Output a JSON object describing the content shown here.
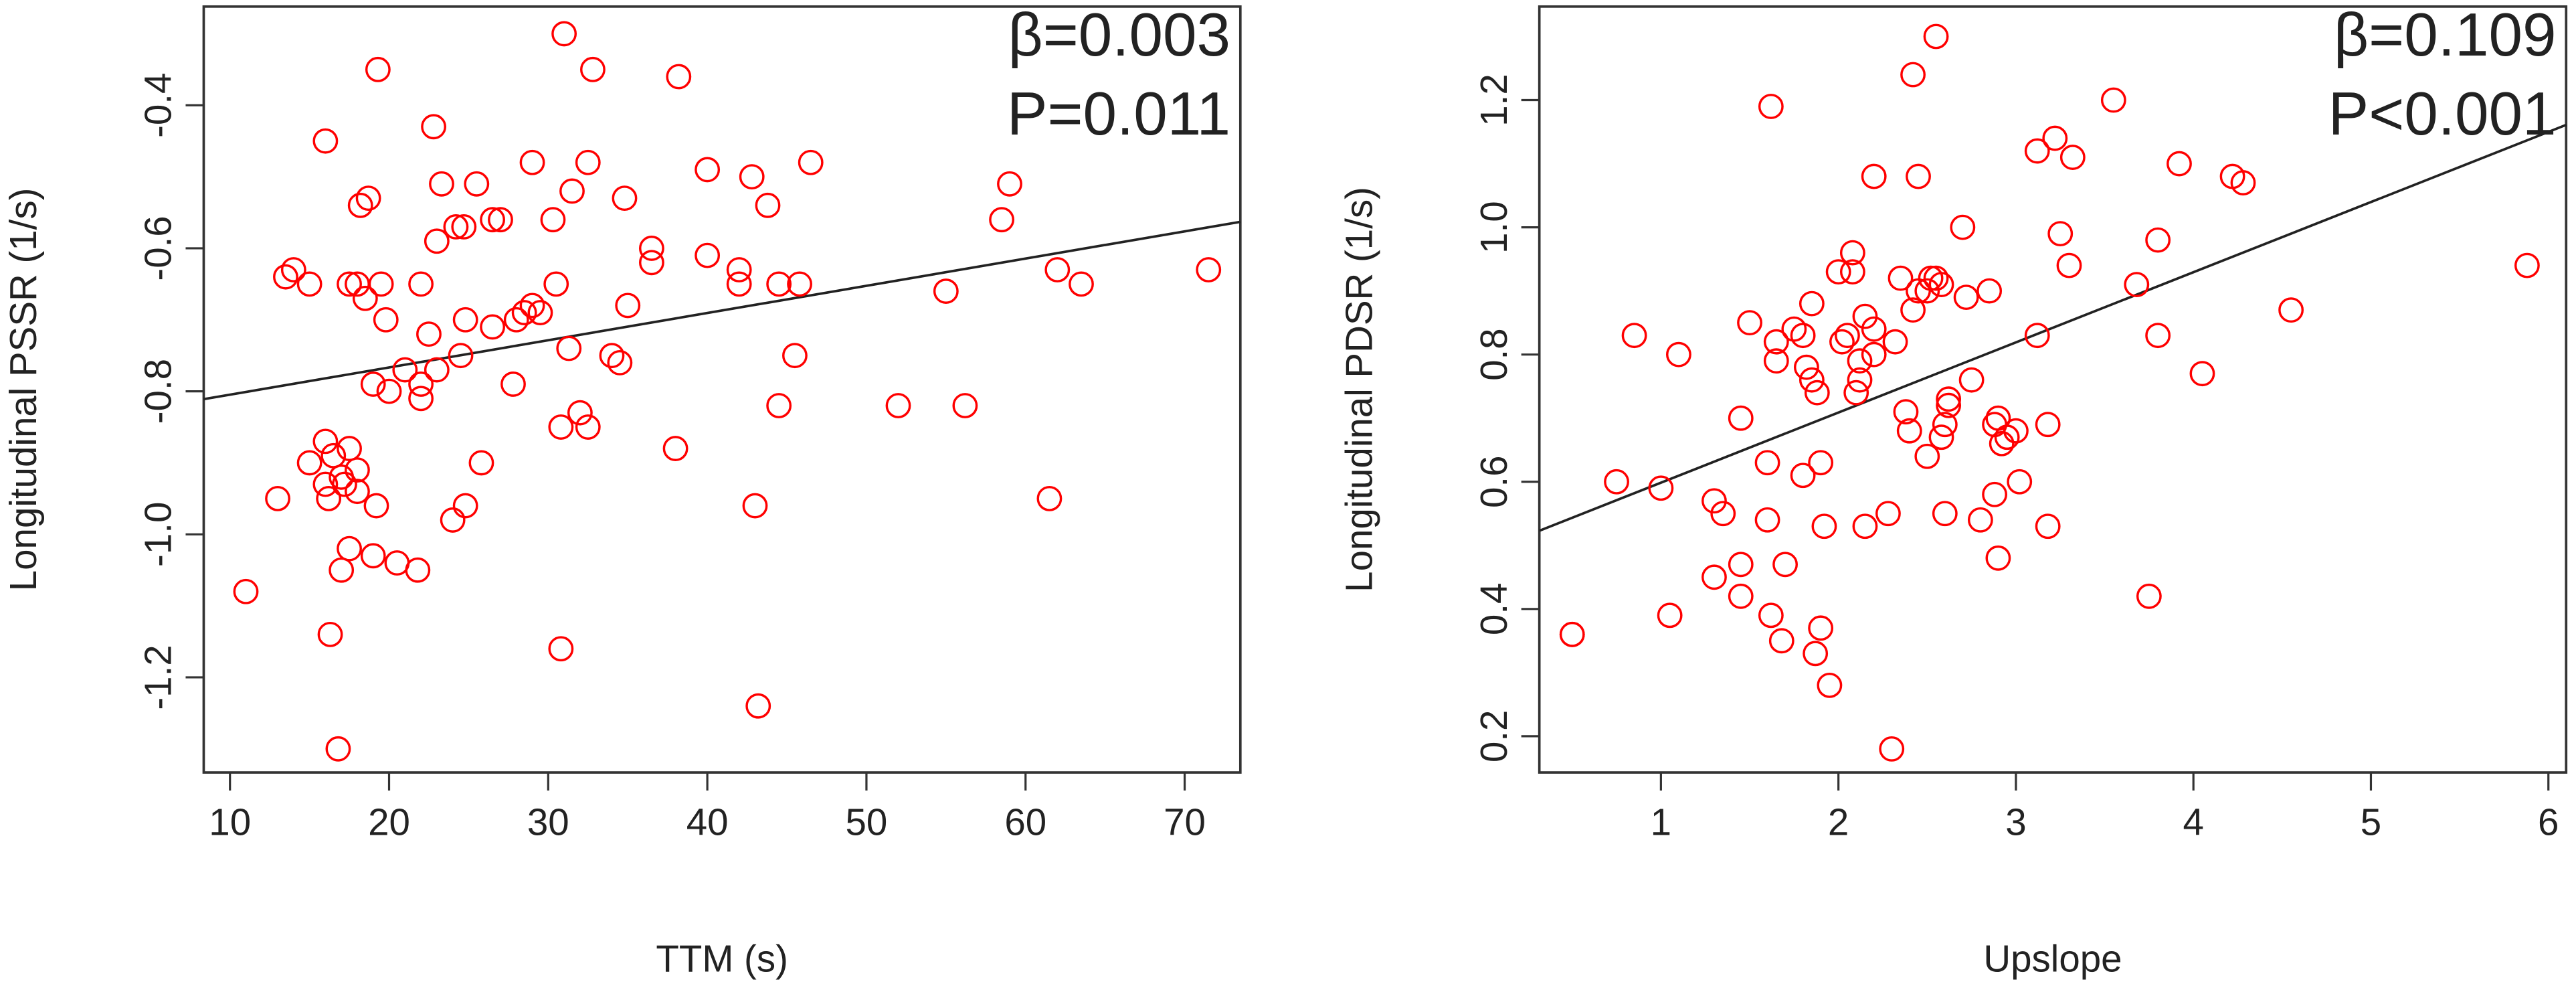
{
  "chart_data": [
    {
      "type": "scatter",
      "x_label": "TTM (s)",
      "y_label": "Longitudinal PSSR (1/s)",
      "annotations": [
        "β=0.003",
        "P=0.011"
      ],
      "color": "#ff0000",
      "xlim": [
        8.35,
        73.5
      ],
      "ylim": [
        -1.333,
        -0.262
      ],
      "xticks": [
        10,
        20,
        30,
        40,
        50,
        60,
        70
      ],
      "yticks": [
        -1.2,
        {
          "value": -1,
          "label": "-1.0"
        },
        -0.8,
        -0.6,
        -0.4
      ],
      "trend": {
        "x": [
          8.35,
          73.5
        ],
        "y": [
          -0.811,
          -0.563
        ]
      },
      "x": [
        11,
        13,
        13.5,
        14,
        15,
        15,
        16,
        16,
        16,
        16.2,
        16.3,
        16.5,
        16.8,
        17,
        17,
        17.2,
        17.5,
        17.5,
        17.5,
        18,
        18,
        18,
        18.2,
        18.5,
        18.7,
        19,
        19,
        19.2,
        19.3,
        19.5,
        19.8,
        20,
        20.5,
        21,
        21.8,
        22,
        22,
        22,
        22.5,
        22.8,
        23,
        23,
        23.3,
        24,
        24.2,
        24.5,
        24.8,
        24.7,
        24.8,
        25.5,
        25.8,
        26.5,
        26.5,
        27,
        27.8,
        28,
        28.5,
        29,
        29,
        29.5,
        30.3,
        30.5,
        30.8,
        30.8,
        31,
        31.3,
        31.5,
        32,
        32.5,
        32.5,
        32.8,
        34,
        34.5,
        34.8,
        35,
        36.5,
        36.5,
        38,
        38.2,
        40,
        40,
        42,
        42,
        42.8,
        43,
        43.2,
        43.8,
        44.5,
        44.5,
        45.5,
        45.8,
        46.5,
        52,
        55,
        56.2,
        58.5,
        59,
        61.5,
        62,
        63.5,
        71.5
      ],
      "y": [
        -1.08,
        -0.95,
        -0.64,
        -0.63,
        -0.65,
        -0.9,
        -0.45,
        -0.87,
        -0.93,
        -0.95,
        -1.14,
        -0.89,
        -1.3,
        -0.92,
        -1.05,
        -0.93,
        -0.88,
        -1.02,
        -0.65,
        -0.65,
        -0.91,
        -0.94,
        -0.54,
        -0.67,
        -0.53,
        -0.79,
        -1.03,
        -0.96,
        -0.35,
        -0.65,
        -0.7,
        -0.8,
        -1.04,
        -0.77,
        -1.05,
        -0.65,
        -0.81,
        -0.79,
        -0.72,
        -0.43,
        -0.59,
        -0.77,
        -0.51,
        -0.98,
        -0.57,
        -0.75,
        -0.7,
        -0.57,
        -0.96,
        -0.51,
        -0.9,
        -0.71,
        -0.56,
        -0.56,
        -0.79,
        -0.7,
        -0.69,
        -0.48,
        -0.68,
        -0.69,
        -0.56,
        -0.65,
        -0.85,
        -1.16,
        -0.3,
        -0.74,
        -0.52,
        -0.83,
        -0.85,
        -0.48,
        -0.35,
        -0.75,
        -0.76,
        -0.53,
        -0.68,
        -0.6,
        -0.62,
        -0.88,
        -0.36,
        -0.49,
        -0.61,
        -0.63,
        -0.65,
        -0.5,
        -0.96,
        -1.24,
        -0.54,
        -0.65,
        -0.82,
        -0.75,
        -0.65,
        -0.48,
        -0.82,
        -0.66,
        -0.82,
        -0.56,
        -0.51,
        -0.95,
        -0.63,
        -0.65,
        -0.63
      ]
    },
    {
      "type": "scatter",
      "x_label": "Upslope",
      "y_label": "Longitudinal PDSR (1/s)",
      "annotations": [
        "β=0.109",
        "P<0.001"
      ],
      "color": "#ff0000",
      "xlim": [
        0.315,
        6.1
      ],
      "ylim": [
        0.143,
        1.347
      ],
      "xticks": [
        1,
        2,
        3,
        4,
        5,
        6
      ],
      "yticks": [
        0.2,
        0.4,
        0.6,
        0.8,
        {
          "value": 1,
          "label": "1.0"
        },
        1.2
      ],
      "trend": {
        "x": [
          0.315,
          6.1
        ],
        "y": [
          0.523,
          1.161
        ]
      },
      "x": [
        0.5,
        0.5,
        0.75,
        0.85,
        1.0,
        1.05,
        1.1,
        1.3,
        1.3,
        1.35,
        1.45,
        1.45,
        1.45,
        1.5,
        1.6,
        1.6,
        1.62,
        1.62,
        1.65,
        1.65,
        1.68,
        1.7,
        1.75,
        1.8,
        1.8,
        1.82,
        1.85,
        1.85,
        1.87,
        1.88,
        1.9,
        1.9,
        1.92,
        1.95,
        2.0,
        2.02,
        2.05,
        2.08,
        2.08,
        2.1,
        2.12,
        2.12,
        2.15,
        2.15,
        2.2,
        2.2,
        2.2,
        2.28,
        2.3,
        2.32,
        2.35,
        2.38,
        2.4,
        2.42,
        2.42,
        2.45,
        2.45,
        2.5,
        2.5,
        2.52,
        2.55,
        2.55,
        2.58,
        2.58,
        2.6,
        2.6,
        2.62,
        2.62,
        2.7,
        2.72,
        2.75,
        2.8,
        2.85,
        2.88,
        2.88,
        2.9,
        2.9,
        2.92,
        2.95,
        3.0,
        3.02,
        3.12,
        3.12,
        3.18,
        3.18,
        3.22,
        3.25,
        3.3,
        3.32,
        3.55,
        3.68,
        3.75,
        3.8,
        3.8,
        3.92,
        4.05,
        4.22,
        4.28,
        4.55,
        5.88
      ],
      "y": [
        0.36,
        0.36,
        0.6,
        0.83,
        0.59,
        0.39,
        0.8,
        0.57,
        0.45,
        0.55,
        0.47,
        0.42,
        0.7,
        0.85,
        0.63,
        0.54,
        0.39,
        1.19,
        0.82,
        0.79,
        0.35,
        0.47,
        0.84,
        0.61,
        0.83,
        0.78,
        0.76,
        0.88,
        0.33,
        0.74,
        0.37,
        0.63,
        0.53,
        0.28,
        0.93,
        0.82,
        0.83,
        0.96,
        0.93,
        0.74,
        0.79,
        0.76,
        0.86,
        0.53,
        1.08,
        0.8,
        0.84,
        0.55,
        0.18,
        0.82,
        0.92,
        0.71,
        0.68,
        1.24,
        0.87,
        0.9,
        1.08,
        0.64,
        0.9,
        0.92,
        1.3,
        0.92,
        0.67,
        0.91,
        0.69,
        0.55,
        0.72,
        0.73,
        1.0,
        0.89,
        0.76,
        0.54,
        0.9,
        0.58,
        0.69,
        0.48,
        0.7,
        0.66,
        0.67,
        0.68,
        0.6,
        0.83,
        1.12,
        0.53,
        0.69,
        1.14,
        0.99,
        0.94,
        1.11,
        1.2,
        0.91,
        0.42,
        0.83,
        0.98,
        1.1,
        0.77,
        1.08,
        1.07,
        0.87,
        0.94
      ]
    }
  ]
}
